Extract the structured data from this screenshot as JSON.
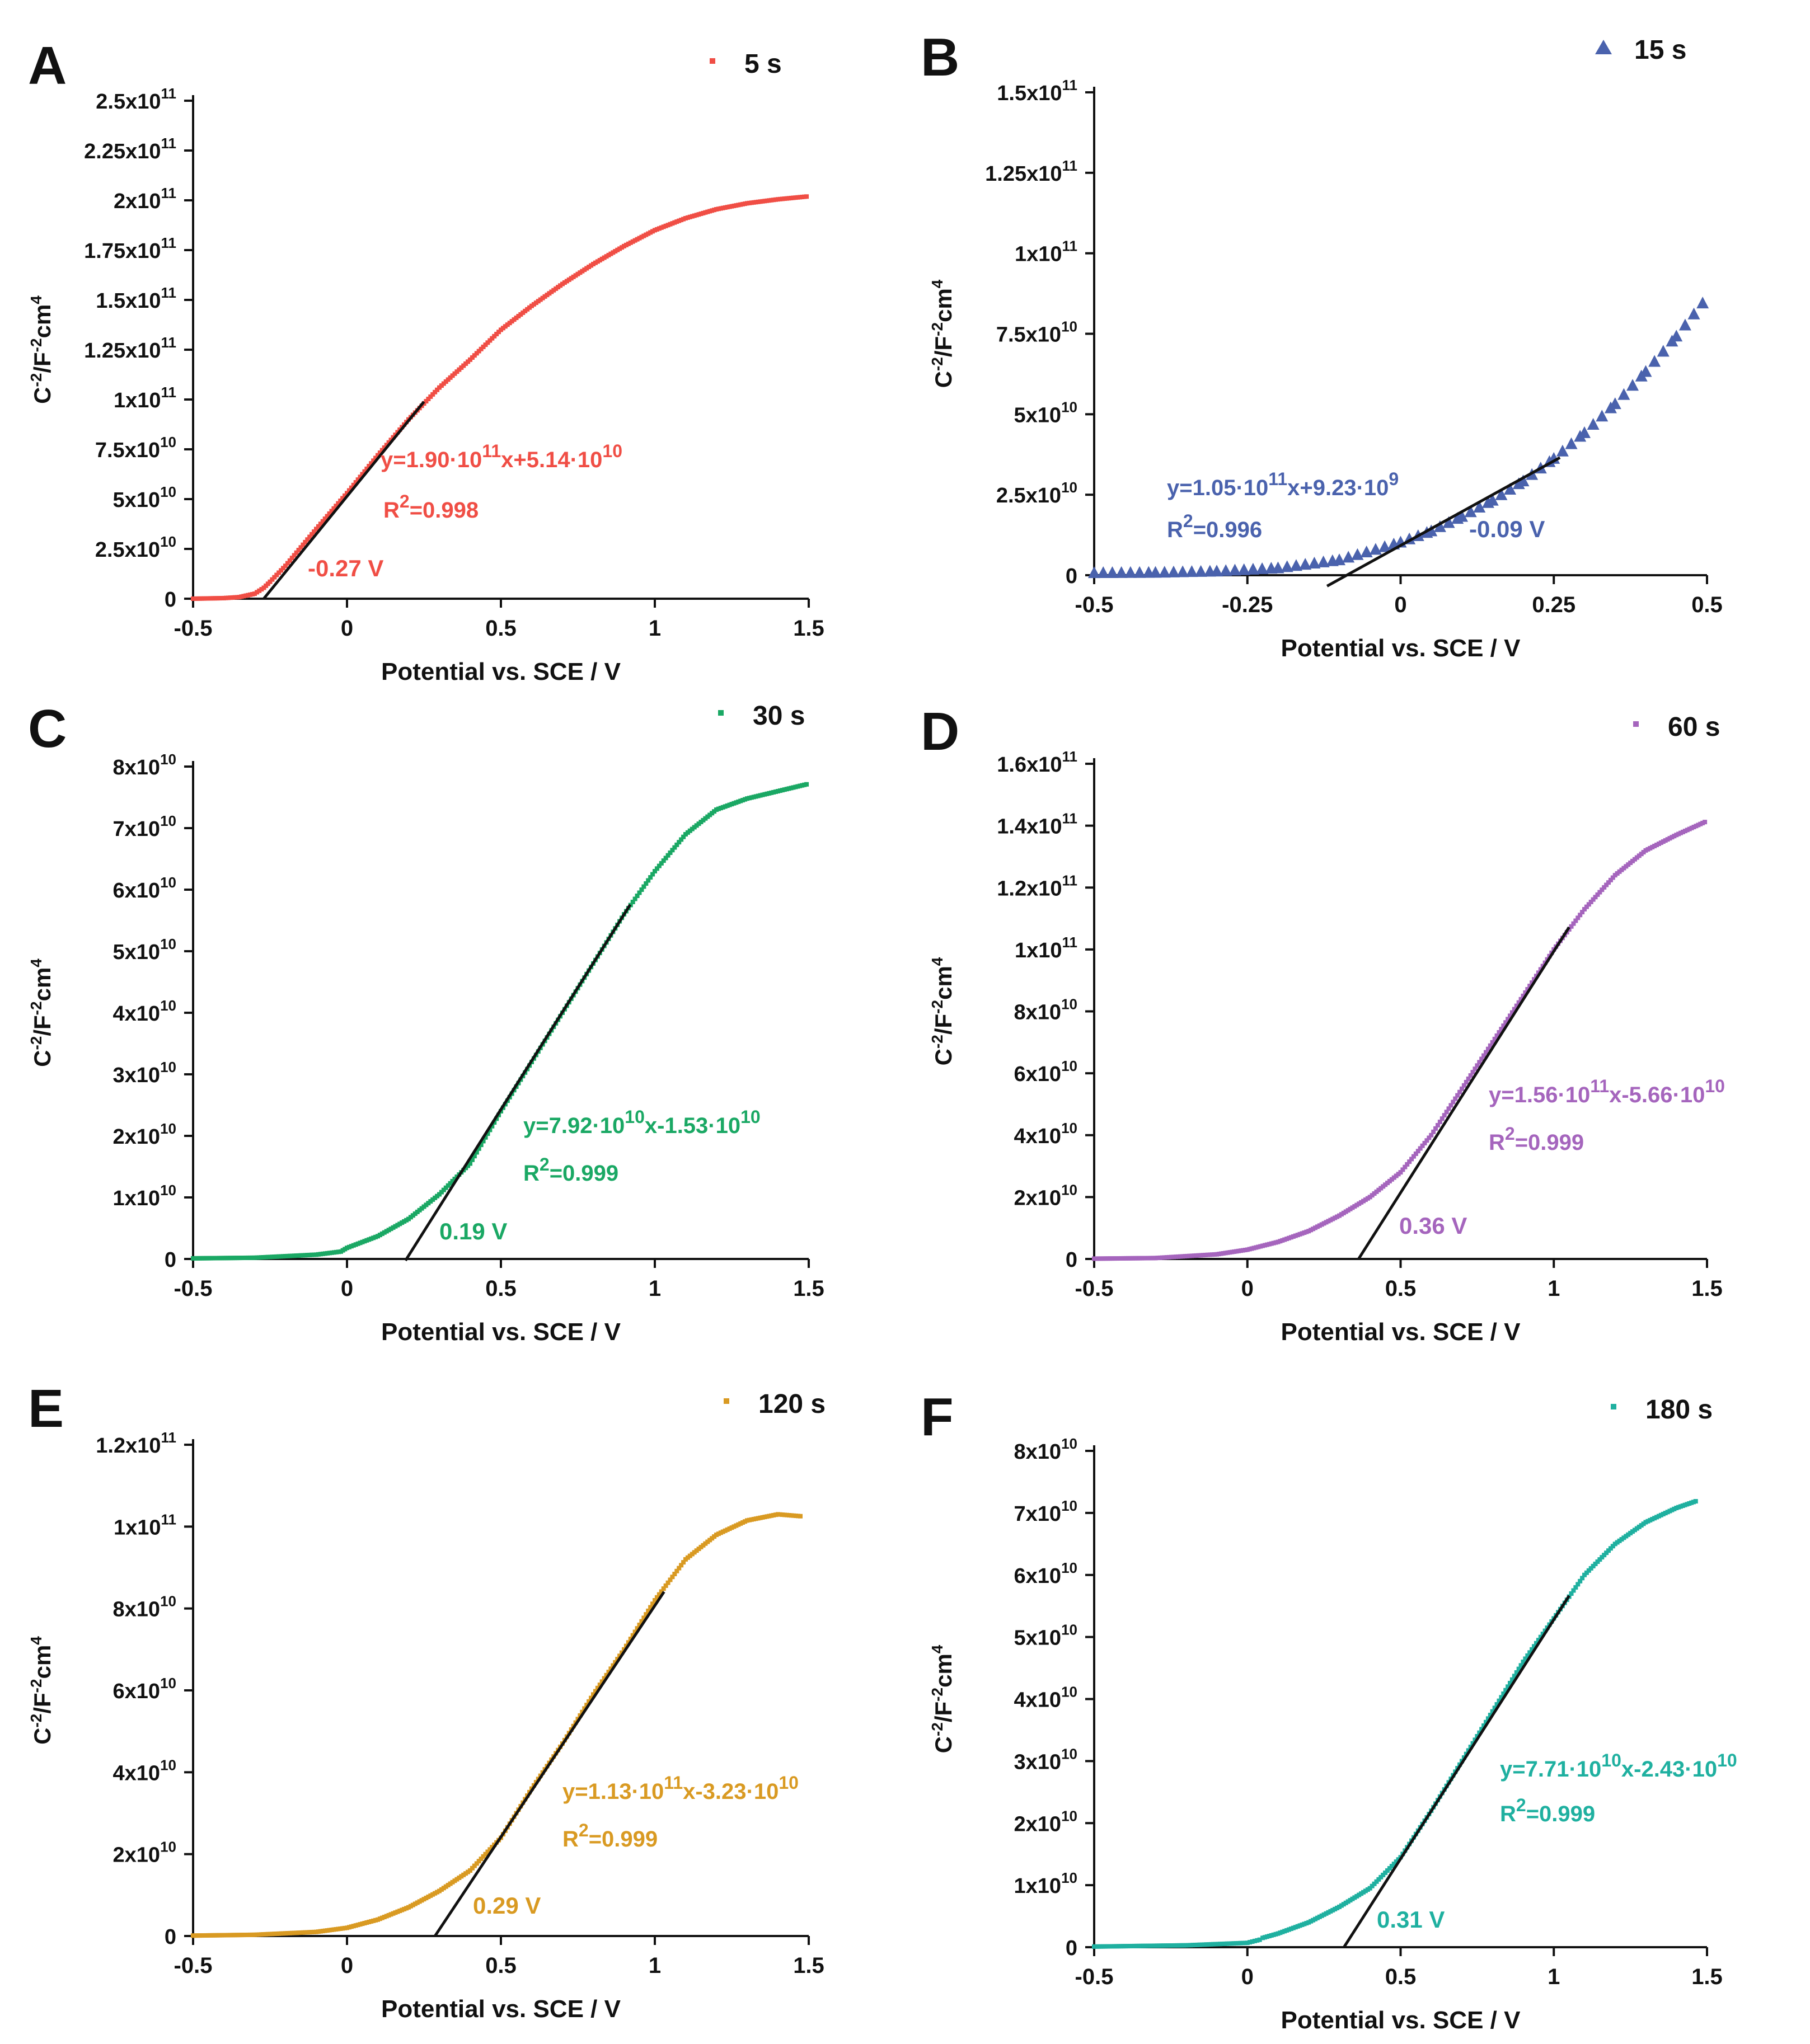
{
  "figure": {
    "ylabel_prefix": "C",
    "ylabel_mid": "/F",
    "ylabel_suffix": "cm",
    "exp_neg2": "-2",
    "exp_4": "4"
  },
  "chart_data": [
    {
      "type": "scatter",
      "panel": "A",
      "color": "#f04e45",
      "marker": "square",
      "legend": "5 s",
      "xlabel": "Potential vs. SCE / V",
      "xlim": [
        -0.5,
        1.5
      ],
      "ylim": [
        0,
        250000000000.0
      ],
      "x_ticks": [
        -0.5,
        0,
        0.5,
        1,
        1.5
      ],
      "x_tick_labels": [
        "-0.5",
        "0",
        "0.5",
        "1",
        "1.5"
      ],
      "y_ticks": [
        0,
        25000000000.0,
        50000000000.0,
        75000000000.0,
        100000000000.0,
        125000000000.0,
        150000000000.0,
        175000000000.0,
        200000000000.0,
        225000000000.0,
        250000000000.0
      ],
      "y_tick_labels": [
        [
          "0",
          ""
        ],
        [
          "2.5x10",
          "10"
        ],
        [
          "5x10",
          "10"
        ],
        [
          "7.5x10",
          "10"
        ],
        [
          "1x10",
          "11"
        ],
        [
          "1.25x10",
          "11"
        ],
        [
          "1.5x10",
          "11"
        ],
        [
          "1.75x10",
          "11"
        ],
        [
          "2x10",
          "11"
        ],
        [
          "2.25x10",
          "11"
        ],
        [
          "2.5x10",
          "11"
        ]
      ],
      "series_points": [
        [
          -0.5,
          0.0
        ],
        [
          -0.4,
          300000000.0
        ],
        [
          -0.35,
          800000000.0
        ],
        [
          -0.3,
          2500000000.0
        ],
        [
          -0.27,
          5500000000.0
        ],
        [
          -0.25,
          8500000000.0
        ],
        [
          -0.2,
          16500000000.0
        ],
        [
          -0.1,
          35000000000.0
        ],
        [
          0,
          53000000000.0
        ],
        [
          0.1,
          72000000000.0
        ],
        [
          0.2,
          90000000000.0
        ],
        [
          0.3,
          106000000000.0
        ],
        [
          0.4,
          120000000000.0
        ],
        [
          0.5,
          135000000000.0
        ],
        [
          0.6,
          147000000000.0
        ],
        [
          0.7,
          158000000000.0
        ],
        [
          0.8,
          168000000000.0
        ],
        [
          0.9,
          177000000000.0
        ],
        [
          1.0,
          185000000000.0
        ],
        [
          1.1,
          191000000000.0
        ],
        [
          1.2,
          195500000000.0
        ],
        [
          1.3,
          198500000000.0
        ],
        [
          1.4,
          200500000000.0
        ],
        [
          1.5,
          202000000000.0
        ]
      ],
      "fit": {
        "slope": 190000000000.0,
        "intercept": 51400000000.0,
        "x_from": -0.27,
        "x_to": 0.25
      },
      "equation": {
        "prefix": "y=1.90·10",
        "exp1": "11",
        "mid": "x+5.14·10",
        "exp2": "10"
      },
      "r2": {
        "prefix": "R",
        "exp": "2",
        "suffix": "=0.998"
      },
      "intercept_label": "-0.27 V"
    },
    {
      "type": "scatter",
      "panel": "B",
      "color": "#4a62ad",
      "marker": "triangle",
      "legend": "15 s",
      "xlabel": "Potential vs. SCE / V",
      "xlim": [
        -0.5,
        0.5
      ],
      "ylim": [
        0,
        150000000000.0
      ],
      "x_ticks": [
        -0.5,
        -0.25,
        0,
        0.25,
        0.5
      ],
      "x_tick_labels": [
        "-0.5",
        "-0.25",
        "0",
        "0.25",
        "0.5"
      ],
      "y_ticks": [
        0,
        25000000000.0,
        50000000000.0,
        75000000000.0,
        100000000000.0,
        125000000000.0,
        150000000000.0
      ],
      "y_tick_labels": [
        [
          "0",
          ""
        ],
        [
          "2.5x10",
          "10"
        ],
        [
          "5x10",
          "10"
        ],
        [
          "7.5x10",
          "10"
        ],
        [
          "1x10",
          "11"
        ],
        [
          "1.25x10",
          "11"
        ],
        [
          "1.5x10",
          "11"
        ]
      ],
      "series_points": [
        [
          -0.5,
          500000000.0
        ],
        [
          -0.4,
          600000000.0
        ],
        [
          -0.3,
          1000000000.0
        ],
        [
          -0.2,
          2000000000.0
        ],
        [
          -0.1,
          4500000000.0
        ],
        [
          0,
          10000000000.0
        ],
        [
          0.05,
          13500000000.0
        ],
        [
          0.1,
          18000000000.0
        ],
        [
          0.15,
          23000000000.0
        ],
        [
          0.2,
          29000000000.0
        ],
        [
          0.25,
          36000000000.0
        ],
        [
          0.3,
          44000000000.0
        ],
        [
          0.35,
          53000000000.0
        ],
        [
          0.4,
          63000000000.0
        ],
        [
          0.45,
          74000000000.0
        ],
        [
          0.5,
          86000000000.0
        ]
      ],
      "fit": {
        "slope": 105000000000.0,
        "intercept": 9230000000.0,
        "x_from": -0.12,
        "x_to": 0.26
      },
      "equation": {
        "prefix": "y=1.05·10",
        "exp1": "11",
        "mid": "x+9.23·10",
        "exp2": "9"
      },
      "r2": {
        "prefix": "R",
        "exp": "2",
        "suffix": "=0.996"
      },
      "intercept_label": "-0.09 V"
    },
    {
      "type": "scatter",
      "panel": "C",
      "color": "#1aa864",
      "marker": "square",
      "legend": "30 s",
      "xlabel": "Potential vs. SCE / V",
      "xlim": [
        -0.5,
        1.5
      ],
      "ylim": [
        0,
        80000000000.0
      ],
      "x_ticks": [
        -0.5,
        0,
        0.5,
        1,
        1.5
      ],
      "x_tick_labels": [
        "-0.5",
        "0",
        "0.5",
        "1",
        "1.5"
      ],
      "y_ticks": [
        0,
        10000000000.0,
        20000000000.0,
        30000000000.0,
        40000000000.0,
        50000000000.0,
        60000000000.0,
        70000000000.0,
        80000000000.0
      ],
      "y_tick_labels": [
        [
          "0",
          ""
        ],
        [
          "1x10",
          "10"
        ],
        [
          "2x10",
          "10"
        ],
        [
          "3x10",
          "10"
        ],
        [
          "4x10",
          "10"
        ],
        [
          "5x10",
          "10"
        ],
        [
          "6x10",
          "10"
        ],
        [
          "7x10",
          "10"
        ],
        [
          "8x10",
          "10"
        ]
      ],
      "series_points": [
        [
          -0.5,
          100000000.0
        ],
        [
          -0.3,
          200000000.0
        ],
        [
          -0.1,
          700000000.0
        ],
        [
          -0.02,
          1200000000.0
        ],
        [
          0,
          1800000000.0
        ],
        [
          0.1,
          3700000000.0
        ],
        [
          0.2,
          6500000000.0
        ],
        [
          0.3,
          10500000000.0
        ],
        [
          0.4,
          15500000000.0
        ],
        [
          0.5,
          24000000000.0
        ],
        [
          0.6,
          32000000000.0
        ],
        [
          0.7,
          40000000000.0
        ],
        [
          0.8,
          48000000000.0
        ],
        [
          0.9,
          56000000000.0
        ],
        [
          1.0,
          63000000000.0
        ],
        [
          1.1,
          69000000000.0
        ],
        [
          1.2,
          73000000000.0
        ],
        [
          1.3,
          74800000000.0
        ],
        [
          1.4,
          76000000000.0
        ],
        [
          1.5,
          77200000000.0
        ]
      ],
      "fit": {
        "slope": 79200000000.0,
        "intercept": -15300000000.0,
        "x_from": 0.19,
        "x_to": 0.92
      },
      "equation": {
        "prefix": "y=7.92·10",
        "exp1": "10",
        "mid": "x-1.53·10",
        "exp2": "10"
      },
      "r2": {
        "prefix": "R",
        "exp": "2",
        "suffix": "=0.999"
      },
      "intercept_label": "0.19 V"
    },
    {
      "type": "scatter",
      "panel": "D",
      "color": "#a565bd",
      "marker": "square",
      "legend": "60 s",
      "xlabel": "Potential vs. SCE / V",
      "xlim": [
        -0.5,
        1.5
      ],
      "ylim": [
        0,
        160000000000.0
      ],
      "x_ticks": [
        -0.5,
        0,
        0.5,
        1,
        1.5
      ],
      "x_tick_labels": [
        "-0.5",
        "0",
        "0.5",
        "1",
        "1.5"
      ],
      "y_ticks": [
        0,
        20000000000.0,
        40000000000.0,
        60000000000.0,
        80000000000.0,
        100000000000.0,
        120000000000.0,
        140000000000.0,
        160000000000.0
      ],
      "y_tick_labels": [
        [
          "0",
          ""
        ],
        [
          "2x10",
          "10"
        ],
        [
          "4x10",
          "10"
        ],
        [
          "6x10",
          "10"
        ],
        [
          "8x10",
          "10"
        ],
        [
          "1x10",
          "11"
        ],
        [
          "1.2x10",
          "11"
        ],
        [
          "1.4x10",
          "11"
        ],
        [
          "1.6x10",
          "11"
        ]
      ],
      "series_points": [
        [
          -0.5,
          100000000.0
        ],
        [
          -0.3,
          300000000.0
        ],
        [
          -0.1,
          1500000000.0
        ],
        [
          0,
          3000000000.0
        ],
        [
          0.1,
          5500000000.0
        ],
        [
          0.2,
          9000000000.0
        ],
        [
          0.3,
          14000000000.0
        ],
        [
          0.4,
          20000000000.0
        ],
        [
          0.5,
          28000000000.0
        ],
        [
          0.6,
          40000000000.0
        ],
        [
          0.7,
          55000000000.0
        ],
        [
          0.8,
          70000000000.0
        ],
        [
          0.9,
          85000000000.0
        ],
        [
          1.0,
          100000000000.0
        ],
        [
          1.1,
          113000000000.0
        ],
        [
          1.2,
          124000000000.0
        ],
        [
          1.3,
          132000000000.0
        ],
        [
          1.4,
          137000000000.0
        ],
        [
          1.5,
          141500000000.0
        ]
      ],
      "fit": {
        "slope": 156000000000.0,
        "intercept": -56600000000.0,
        "x_from": 0.363,
        "x_to": 1.05
      },
      "equation": {
        "prefix": "y=1.56·10",
        "exp1": "11",
        "mid": "x-5.66·10",
        "exp2": "10"
      },
      "r2": {
        "prefix": "R",
        "exp": "2",
        "suffix": "=0.999"
      },
      "intercept_label": "0.36 V"
    },
    {
      "type": "scatter",
      "panel": "E",
      "color": "#d99a22",
      "marker": "square",
      "legend": "120 s",
      "xlabel": "Potential vs. SCE / V",
      "xlim": [
        -0.5,
        1.5
      ],
      "ylim": [
        0,
        120000000000.0
      ],
      "x_ticks": [
        -0.5,
        0,
        0.5,
        1,
        1.5
      ],
      "x_tick_labels": [
        "-0.5",
        "0",
        "0.5",
        "1",
        "1.5"
      ],
      "y_ticks": [
        0,
        20000000000.0,
        40000000000.0,
        60000000000.0,
        80000000000.0,
        100000000000.0,
        120000000000.0
      ],
      "y_tick_labels": [
        [
          "0",
          ""
        ],
        [
          "2x10",
          "10"
        ],
        [
          "4x10",
          "10"
        ],
        [
          "6x10",
          "10"
        ],
        [
          "8x10",
          "10"
        ],
        [
          "1x10",
          "11"
        ],
        [
          "1.2x10",
          "11"
        ]
      ],
      "series_points": [
        [
          -0.5,
          100000000.0
        ],
        [
          -0.3,
          300000000.0
        ],
        [
          -0.1,
          1000000000.0
        ],
        [
          0,
          2000000000.0
        ],
        [
          0.1,
          4000000000.0
        ],
        [
          0.2,
          7000000000.0
        ],
        [
          0.3,
          11000000000.0
        ],
        [
          0.4,
          16000000000.0
        ],
        [
          0.5,
          24000000000.0
        ],
        [
          0.6,
          36000000000.0
        ],
        [
          0.7,
          47000000000.0
        ],
        [
          0.8,
          59000000000.0
        ],
        [
          0.9,
          70000000000.0
        ],
        [
          1.0,
          82000000000.0
        ],
        [
          1.1,
          92000000000.0
        ],
        [
          1.2,
          98000000000.0
        ],
        [
          1.3,
          101500000000.0
        ],
        [
          1.4,
          103000000000.0
        ],
        [
          1.48,
          102500000000.0
        ]
      ],
      "fit": {
        "slope": 113000000000.0,
        "intercept": -32300000000.0,
        "x_from": 0.286,
        "x_to": 1.03
      },
      "equation": {
        "prefix": "y=1.13·10",
        "exp1": "11",
        "mid": "x-3.23·10",
        "exp2": "10"
      },
      "r2": {
        "prefix": "R",
        "exp": "2",
        "suffix": "=0.999"
      },
      "intercept_label": "0.29 V"
    },
    {
      "type": "scatter",
      "panel": "F",
      "color": "#1fb0a0",
      "marker": "square",
      "legend": "180 s",
      "xlabel": "Potential vs. SCE / V",
      "xlim": [
        -0.5,
        1.5
      ],
      "ylim": [
        0,
        80000000000.0
      ],
      "x_ticks": [
        -0.5,
        0,
        0.5,
        1,
        1.5
      ],
      "x_tick_labels": [
        "-0.5",
        "0",
        "0.5",
        "1",
        "1.5"
      ],
      "y_ticks": [
        0,
        10000000000.0,
        20000000000.0,
        30000000000.0,
        40000000000.0,
        50000000000.0,
        60000000000.0,
        70000000000.0,
        80000000000.0
      ],
      "y_tick_labels": [
        [
          "0",
          ""
        ],
        [
          "1x10",
          "10"
        ],
        [
          "2x10",
          "10"
        ],
        [
          "3x10",
          "10"
        ],
        [
          "4x10",
          "10"
        ],
        [
          "5x10",
          "10"
        ],
        [
          "6x10",
          "10"
        ],
        [
          "7x10",
          "10"
        ],
        [
          "8x10",
          "10"
        ]
      ],
      "series_points": [
        [
          -0.5,
          100000000.0
        ],
        [
          -0.2,
          300000000.0
        ],
        [
          0,
          700000000.0
        ],
        [
          0.04,
          1200000000.0
        ],
        [
          0.05,
          1500000000.0
        ],
        [
          0.1,
          2200000000.0
        ],
        [
          0.2,
          4000000000.0
        ],
        [
          0.3,
          6500000000.0
        ],
        [
          0.4,
          9500000000.0
        ],
        [
          0.5,
          14500000000.0
        ],
        [
          0.6,
          22000000000.0
        ],
        [
          0.7,
          30000000000.0
        ],
        [
          0.8,
          38000000000.0
        ],
        [
          0.9,
          46000000000.0
        ],
        [
          1.0,
          53000000000.0
        ],
        [
          1.1,
          60000000000.0
        ],
        [
          1.2,
          65000000000.0
        ],
        [
          1.3,
          68500000000.0
        ],
        [
          1.4,
          70800000000.0
        ],
        [
          1.47,
          72000000000.0
        ]
      ],
      "fit": {
        "slope": 77100000000.0,
        "intercept": -24300000000.0,
        "x_from": 0.315,
        "x_to": 1.05
      },
      "equation": {
        "prefix": "y=7.71·10",
        "exp1": "10",
        "mid": "x-2.43·10",
        "exp2": "10"
      },
      "r2": {
        "prefix": "R",
        "exp": "2",
        "suffix": "=0.999"
      },
      "intercept_label": "0.31 V"
    }
  ]
}
